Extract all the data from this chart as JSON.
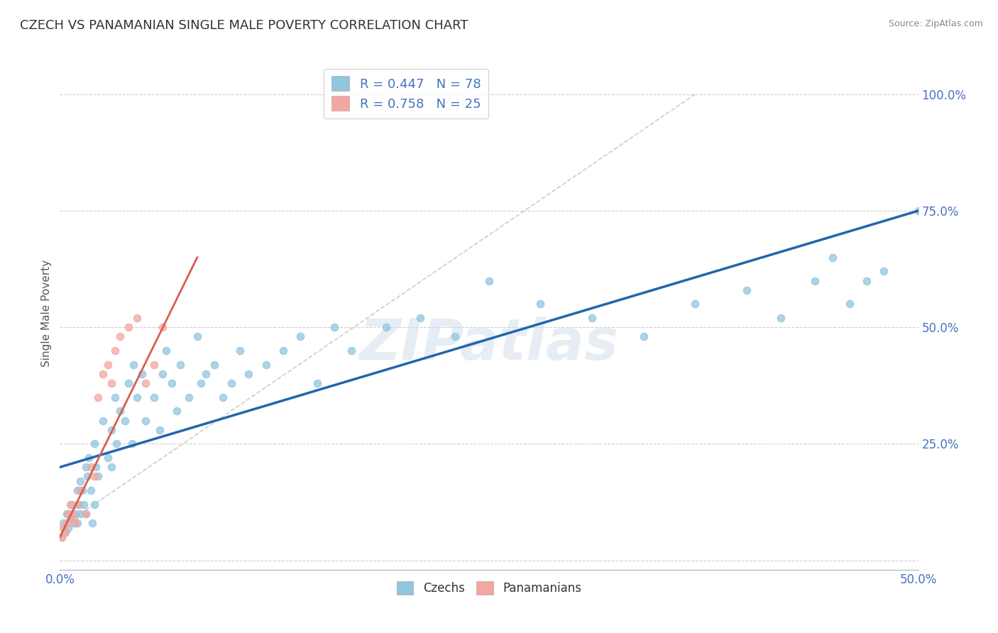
{
  "title": "CZECH VS PANAMANIAN SINGLE MALE POVERTY CORRELATION CHART",
  "source": "Source: ZipAtlas.com",
  "ylabel_label": "Single Male Poverty",
  "xlim": [
    0.0,
    0.5
  ],
  "ylim": [
    -0.02,
    1.08
  ],
  "czech_color": "#92c5de",
  "panama_color": "#f4a6a0",
  "czech_line_color": "#2166ac",
  "panama_line_color": "#d6604d",
  "ref_line_color": "#cccccc",
  "ref_line_style": "--",
  "legend_r_czech": "R = 0.447",
  "legend_n_czech": "N = 78",
  "legend_r_panama": "R = 0.758",
  "legend_n_panama": "N = 25",
  "watermark": "ZIPatlas",
  "background_color": "#ffffff",
  "grid_color": "#d0d0d0",
  "czech_line_y0": 0.2,
  "czech_line_y1": 0.75,
  "panama_line_x0": 0.0,
  "panama_line_x1": 0.08,
  "panama_line_y0": 0.05,
  "panama_line_y1": 0.65,
  "ref_line_x0": 0.0,
  "ref_line_x1": 0.37,
  "ref_line_y0": 0.07,
  "ref_line_y1": 1.0,
  "czech_x": [
    0.001,
    0.002,
    0.003,
    0.004,
    0.005,
    0.006,
    0.007,
    0.008,
    0.009,
    0.01,
    0.01,
    0.011,
    0.012,
    0.012,
    0.013,
    0.014,
    0.015,
    0.015,
    0.016,
    0.017,
    0.018,
    0.019,
    0.02,
    0.02,
    0.021,
    0.022,
    0.025,
    0.028,
    0.03,
    0.03,
    0.032,
    0.033,
    0.035,
    0.038,
    0.04,
    0.042,
    0.043,
    0.045,
    0.048,
    0.05,
    0.055,
    0.058,
    0.06,
    0.062,
    0.065,
    0.068,
    0.07,
    0.075,
    0.08,
    0.082,
    0.085,
    0.09,
    0.095,
    0.1,
    0.105,
    0.11,
    0.12,
    0.13,
    0.14,
    0.15,
    0.16,
    0.17,
    0.19,
    0.21,
    0.23,
    0.25,
    0.28,
    0.31,
    0.34,
    0.37,
    0.4,
    0.42,
    0.44,
    0.45,
    0.46,
    0.47,
    0.48,
    0.5
  ],
  "czech_y": [
    0.05,
    0.08,
    0.06,
    0.1,
    0.07,
    0.09,
    0.12,
    0.08,
    0.1,
    0.15,
    0.08,
    0.12,
    0.1,
    0.17,
    0.15,
    0.12,
    0.2,
    0.1,
    0.18,
    0.22,
    0.15,
    0.08,
    0.25,
    0.12,
    0.2,
    0.18,
    0.3,
    0.22,
    0.28,
    0.2,
    0.35,
    0.25,
    0.32,
    0.3,
    0.38,
    0.25,
    0.42,
    0.35,
    0.4,
    0.3,
    0.35,
    0.28,
    0.4,
    0.45,
    0.38,
    0.32,
    0.42,
    0.35,
    0.48,
    0.38,
    0.4,
    0.42,
    0.35,
    0.38,
    0.45,
    0.4,
    0.42,
    0.45,
    0.48,
    0.38,
    0.5,
    0.45,
    0.5,
    0.52,
    0.48,
    0.6,
    0.55,
    0.52,
    0.48,
    0.55,
    0.58,
    0.52,
    0.6,
    0.65,
    0.55,
    0.6,
    0.62,
    0.75
  ],
  "panama_x": [
    0.001,
    0.002,
    0.003,
    0.004,
    0.005,
    0.006,
    0.007,
    0.008,
    0.009,
    0.01,
    0.012,
    0.015,
    0.018,
    0.02,
    0.022,
    0.025,
    0.028,
    0.03,
    0.032,
    0.035,
    0.04,
    0.045,
    0.05,
    0.055,
    0.06
  ],
  "panama_y": [
    0.05,
    0.07,
    0.06,
    0.08,
    0.1,
    0.12,
    0.1,
    0.09,
    0.08,
    0.12,
    0.15,
    0.1,
    0.2,
    0.18,
    0.35,
    0.4,
    0.42,
    0.38,
    0.45,
    0.48,
    0.5,
    0.52,
    0.38,
    0.42,
    0.5
  ]
}
